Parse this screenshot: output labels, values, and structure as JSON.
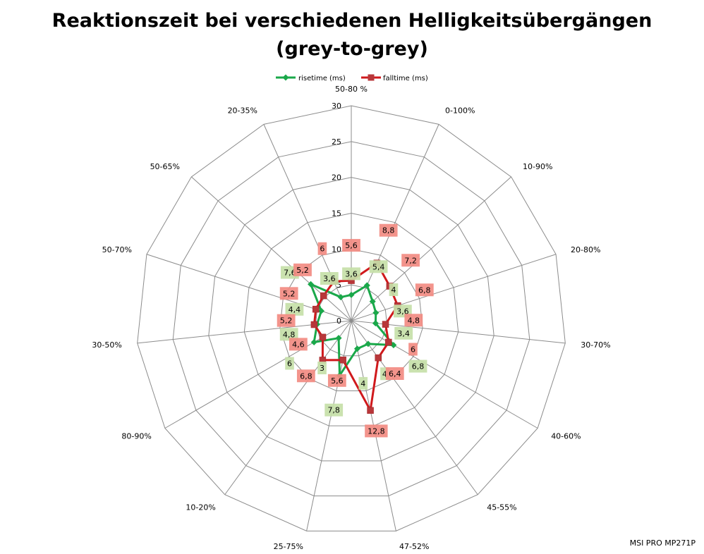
{
  "chart_data": {
    "type": "radar",
    "title_line1": "Reaktionszeit bei verschiedenen Helligkeitsübergängen",
    "title_line2": "(grey-to-grey)",
    "categories": [
      "50-80 %",
      "0-100%",
      "10-90%",
      "20-80%",
      "30-70%",
      "40-60%",
      "45-55%",
      "47-52%",
      "25-75%",
      "10-20%",
      "80-90%",
      "30-50%",
      "50-70%",
      "50-65%",
      "20-35%"
    ],
    "rmax": 30,
    "ticks": [
      0,
      5,
      10,
      15,
      20,
      25,
      30
    ],
    "legend_position": "top",
    "series": [
      {
        "name": "risetime (ms)",
        "color": "#1aa84a",
        "label_color": "#c6e0a8",
        "marker": "diamond",
        "values": [
          3.6,
          5.4,
          4,
          3.6,
          3.4,
          6.8,
          4,
          4,
          7.8,
          3,
          6,
          4.8,
          4.4,
          7.6,
          3.6
        ],
        "labels": [
          "3,6",
          "5,4",
          "4",
          "3,6",
          "3,4",
          "6,8",
          "4",
          "4",
          "7,8",
          "3",
          "6",
          "4,8",
          "4,4",
          "7,6",
          "3,6"
        ]
      },
      {
        "name": "falltime (ms)",
        "color": "#d0191c",
        "label_color": "#f28b82",
        "marker": "square",
        "values": [
          5.6,
          8.8,
          7.2,
          6.8,
          4.8,
          6,
          6.4,
          12.8,
          5.6,
          6.8,
          4.6,
          5.2,
          5.2,
          5.2,
          6
        ],
        "labels": [
          "5,6",
          "8,8",
          "7,2",
          "6,8",
          "4,8",
          "6",
          "6,4",
          "12,8",
          "5,6",
          "6,8",
          "4,6",
          "5,2",
          "5,2",
          "5,2",
          "6"
        ]
      }
    ]
  },
  "footer": {
    "model": "MSI PRO MP271P"
  }
}
